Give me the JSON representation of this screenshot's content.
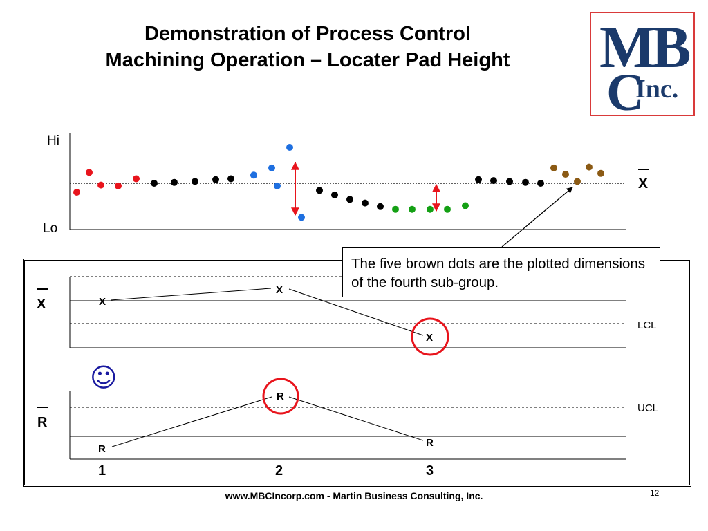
{
  "title": {
    "line1": "Demonstration of Process Control",
    "line2": "Machining Operation – Locater Pad Height"
  },
  "logo": {
    "line1": "MB",
    "line2": "C",
    "line3": "Inc."
  },
  "top_chart": {
    "hi_label": "Hi",
    "lo_label": "Lo",
    "mean_label": "X",
    "points": [
      {
        "i": 0,
        "v": 0.4,
        "c": "#e8141c"
      },
      {
        "i": 1,
        "v": 0.62,
        "c": "#e8141c"
      },
      {
        "i": 2,
        "v": 0.48,
        "c": "#e8141c"
      },
      {
        "i": 3,
        "v": 0.47,
        "c": "#e8141c"
      },
      {
        "i": 4,
        "v": 0.55,
        "c": "#e8141c"
      },
      {
        "i": 5,
        "v": 0.5,
        "c": "#000000"
      },
      {
        "i": 6,
        "v": 0.51,
        "c": "#000000"
      },
      {
        "i": 7,
        "v": 0.52,
        "c": "#000000"
      },
      {
        "i": 8,
        "v": 0.54,
        "c": "#000000"
      },
      {
        "i": 9,
        "v": 0.55,
        "c": "#000000"
      },
      {
        "i": 10,
        "v": 0.59,
        "c": "#1e6fe0"
      },
      {
        "i": 11,
        "v": 0.67,
        "c": "#1e6fe0"
      },
      {
        "i": 12,
        "v": 0.47,
        "c": "#1e6fe0"
      },
      {
        "i": 13,
        "v": 0.9,
        "c": "#1e6fe0"
      },
      {
        "i": 14,
        "v": 0.12,
        "c": "#1e6fe0"
      },
      {
        "i": 15,
        "v": 0.42,
        "c": "#000000"
      },
      {
        "i": 16,
        "v": 0.37,
        "c": "#000000"
      },
      {
        "i": 17,
        "v": 0.32,
        "c": "#000000"
      },
      {
        "i": 18,
        "v": 0.28,
        "c": "#000000"
      },
      {
        "i": 19,
        "v": 0.24,
        "c": "#000000"
      },
      {
        "i": 20,
        "v": 0.21,
        "c": "#14a014"
      },
      {
        "i": 21,
        "v": 0.21,
        "c": "#14a014"
      },
      {
        "i": 22,
        "v": 0.21,
        "c": "#14a014"
      },
      {
        "i": 23,
        "v": 0.21,
        "c": "#14a014"
      },
      {
        "i": 24,
        "v": 0.25,
        "c": "#14a014"
      },
      {
        "i": 25,
        "v": 0.54,
        "c": "#000000"
      },
      {
        "i": 26,
        "v": 0.53,
        "c": "#000000"
      },
      {
        "i": 27,
        "v": 0.52,
        "c": "#000000"
      },
      {
        "i": 28,
        "v": 0.51,
        "c": "#000000"
      },
      {
        "i": 29,
        "v": 0.5,
        "c": "#000000"
      },
      {
        "i": 30,
        "v": 0.67,
        "c": "#8b5a14"
      },
      {
        "i": 31,
        "v": 0.6,
        "c": "#8b5a14"
      },
      {
        "i": 32,
        "v": 0.52,
        "c": "#8b5a14"
      },
      {
        "i": 33,
        "v": 0.68,
        "c": "#8b5a14"
      },
      {
        "i": 34,
        "v": 0.61,
        "c": "#8b5a14"
      }
    ]
  },
  "callout": "The five brown dots are the plotted dimensions of the fourth sub-group.",
  "xbar_chart": {
    "axis_label": "X",
    "lcl_label": "LCL",
    "point_label": "X",
    "points": [
      {
        "sub": 1,
        "label": "X"
      },
      {
        "sub": 2,
        "label": "X"
      },
      {
        "sub": 3,
        "label": "X"
      }
    ]
  },
  "r_chart": {
    "axis_label": "R",
    "ucl_label": "UCL",
    "point_label": "R"
  },
  "subgroups": [
    "1",
    "2",
    "3"
  ],
  "smiley": "☺",
  "footer": "www.MBCIncorp.com  -  Martin Business Consulting, Inc.",
  "page_number": "12"
}
